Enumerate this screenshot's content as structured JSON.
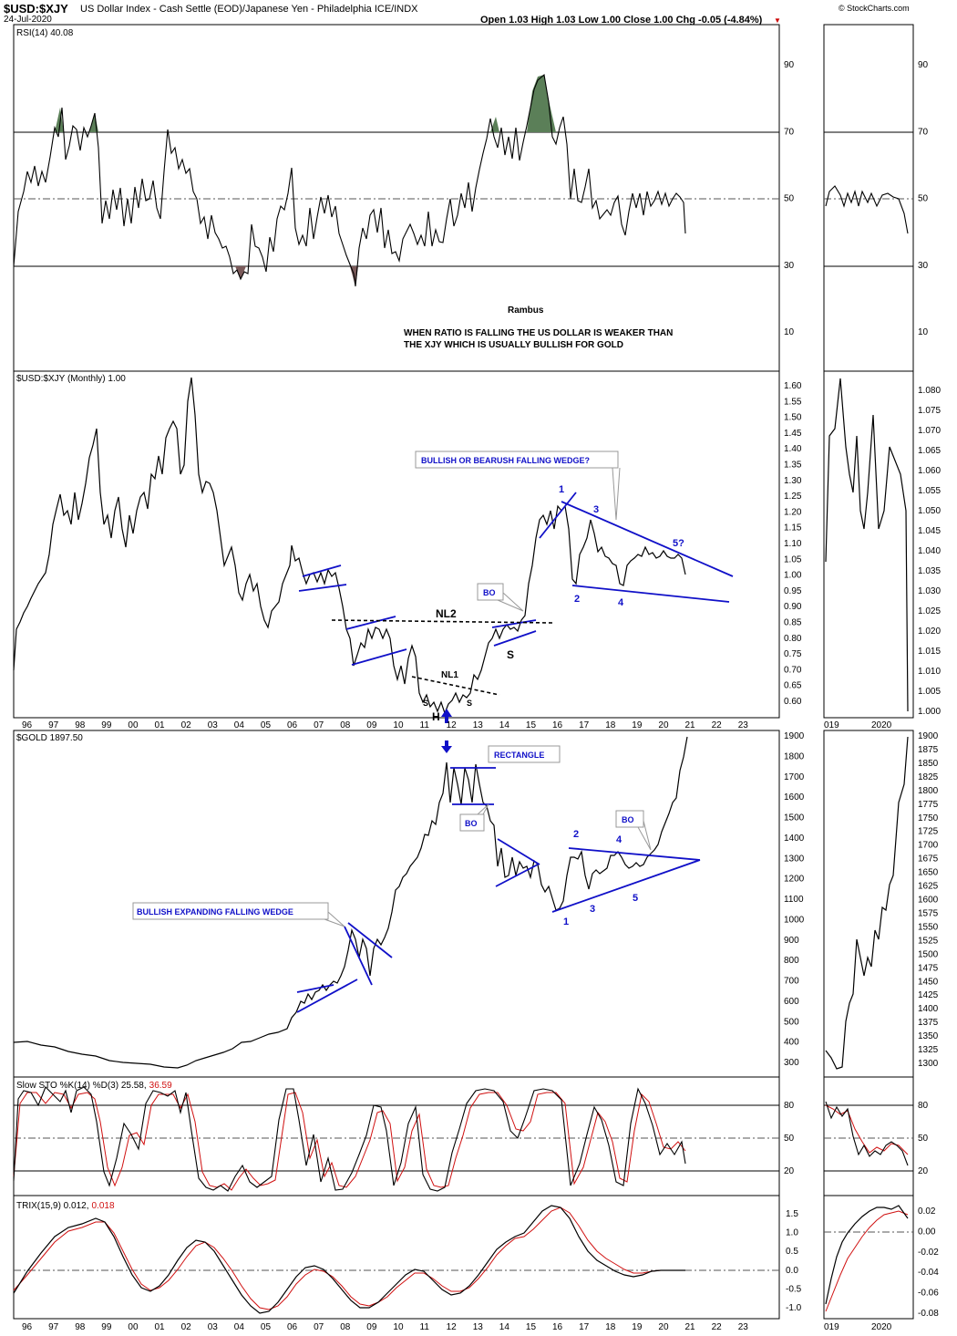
{
  "header": {
    "symbol": "$USD:$XJY",
    "description": "US Dollar Index - Cash Settle (EOD)/Japanese Yen - Philadelphia ICE/INDX",
    "date": "24-Jul-2020",
    "ohlc": "Open 1.03  High 1.03  Low 1.00  Close 1.00  Chg -0.05 (-4.84%)",
    "watermark": "© StockCharts.com"
  },
  "colors": {
    "pattern_lines": "#1010c8",
    "rsi_fill_over": "#5b7f58",
    "rsi_fill_under": "#7a5a5a",
    "signal_line": "#d01010",
    "price_line": "#000000"
  },
  "x_axis": {
    "years": [
      "96",
      "97",
      "98",
      "99",
      "00",
      "01",
      "02",
      "03",
      "04",
      "05",
      "06",
      "07",
      "08",
      "09",
      "10",
      "11",
      "12",
      "13",
      "14",
      "15",
      "16",
      "17",
      "18",
      "19",
      "20",
      "21",
      "22",
      "23"
    ],
    "inset_labels": [
      "019",
      "2020"
    ]
  },
  "panels": {
    "rsi": {
      "title": "RSI(14) 40.08",
      "ticks": [
        "90",
        "70",
        "50",
        "30",
        "10"
      ],
      "note_author": "Rambus",
      "note_lines": [
        "WHEN RATIO IS FALLING THE US DOLLAR IS WEAKER THAN",
        "THE XJY WHICH IS USUALLY BULLISH FOR GOLD"
      ]
    },
    "ratio": {
      "title": "$USD:$XJY (Monthly) 1.00",
      "ticks": [
        "1.60",
        "1.55",
        "1.50",
        "1.45",
        "1.40",
        "1.35",
        "1.30",
        "1.25",
        "1.20",
        "1.15",
        "1.10",
        "1.05",
        "1.00",
        "0.95",
        "0.90",
        "0.85",
        "0.80",
        "0.75",
        "0.70",
        "0.65",
        "0.60"
      ],
      "inset_ticks": [
        "1.080",
        "1.075",
        "1.070",
        "1.065",
        "1.060",
        "1.055",
        "1.050",
        "1.045",
        "1.040",
        "1.035",
        "1.030",
        "1.025",
        "1.020",
        "1.015",
        "1.010",
        "1.005",
        "1.000"
      ],
      "callout": "BULLISH OR BEARUSH  FALLING WEDGE?",
      "bo": "BO",
      "nl2": "NL2",
      "nl1": "NL1",
      "h": "H",
      "s": "S",
      "s_small": "S",
      "wedge_points": [
        "1",
        "2",
        "3",
        "4",
        "5?"
      ]
    },
    "gold": {
      "title": "$GOLD 1897.50",
      "ticks": [
        "1900",
        "1800",
        "1700",
        "1600",
        "1500",
        "1400",
        "1300",
        "1200",
        "1100",
        "1000",
        "900",
        "800",
        "700",
        "600",
        "500",
        "400",
        "300"
      ],
      "inset_ticks": [
        "1900",
        "1875",
        "1850",
        "1825",
        "1800",
        "1775",
        "1750",
        "1725",
        "1700",
        "1675",
        "1650",
        "1625",
        "1600",
        "1575",
        "1550",
        "1525",
        "1500",
        "1475",
        "1450",
        "1425",
        "1400",
        "1375",
        "1350",
        "1325",
        "1300"
      ],
      "callout_wedge": "BULLISH EXPANDING FALLING WEDGE",
      "callout_rect": "RECTANGLE",
      "bo": "BO",
      "bo2": "BO",
      "triangle_points": [
        "1",
        "2",
        "3",
        "4",
        "5"
      ]
    },
    "sto": {
      "title": "Slow STO %K(14) %D(3) 25.58,",
      "title_red": "36.59",
      "ticks": [
        "80",
        "50",
        "20"
      ]
    },
    "trix": {
      "title": "TRIX(15,9) 0.012,",
      "title_red": "0.018",
      "ticks": [
        "1.5",
        "1.0",
        "0.5",
        "0.0",
        "-0.5",
        "-1.0"
      ],
      "inset_ticks": [
        "0.02",
        "0.00",
        "-0.02",
        "-0.04",
        "-0.06",
        "-0.08"
      ]
    }
  },
  "chart_data": [
    {
      "type": "line",
      "title": "RSI(14) 40.08",
      "x": [
        "1995",
        "1996",
        "1997",
        "1998",
        "1999",
        "2000",
        "2001",
        "2002",
        "2003",
        "2004",
        "2005",
        "2006",
        "2007",
        "2008",
        "2009",
        "2010",
        "2011",
        "2012",
        "2013",
        "2014",
        "2015",
        "2016",
        "2017",
        "2018",
        "2019",
        "2020"
      ],
      "series": [
        {
          "values": [
            30,
            55,
            75,
            72,
            45,
            50,
            65,
            55,
            45,
            28,
            35,
            60,
            48,
            35,
            45,
            42,
            35,
            45,
            60,
            65,
            88,
            45,
            50,
            45,
            52,
            40
          ]
        }
      ],
      "reference_lines": [
        30,
        50,
        70
      ]
    },
    {
      "type": "line",
      "title": "$USD:$XJY (Monthly) 1.00",
      "x": [
        "1995",
        "1996",
        "1997",
        "1998",
        "1999",
        "2000",
        "2001",
        "2002",
        "2003",
        "2004",
        "2005",
        "2006",
        "2007",
        "2008",
        "2009",
        "2010",
        "2011",
        "2012",
        "2013",
        "2014",
        "2015",
        "2016",
        "2017",
        "2018",
        "2019",
        "2020"
      ],
      "series": [
        {
          "values": [
            0.73,
            0.9,
            1.15,
            1.35,
            1.2,
            1.05,
            1.45,
            1.3,
            1.05,
            0.97,
            0.88,
            1.03,
            1.0,
            0.8,
            0.82,
            0.72,
            0.62,
            0.65,
            0.7,
            0.85,
            1.2,
            1.0,
            1.1,
            0.98,
            1.06,
            1.0
          ]
        }
      ],
      "ylim": [
        0.55,
        1.65
      ]
    },
    {
      "type": "line",
      "title": "$GOLD 1897.50",
      "x": [
        "1995",
        "1996",
        "1997",
        "1998",
        "1999",
        "2000",
        "2001",
        "2002",
        "2003",
        "2004",
        "2005",
        "2006",
        "2007",
        "2008",
        "2009",
        "2010",
        "2011",
        "2012",
        "2013",
        "2014",
        "2015",
        "2016",
        "2017",
        "2018",
        "2019",
        "2020"
      ],
      "series": [
        {
          "values": [
            385,
            380,
            350,
            290,
            290,
            280,
            270,
            330,
            390,
            420,
            500,
            620,
            800,
            850,
            1050,
            1350,
            1800,
            1700,
            1250,
            1200,
            1060,
            1150,
            1300,
            1280,
            1400,
            1897
          ]
        }
      ],
      "ylim": [
        250,
        1900
      ]
    },
    {
      "type": "line",
      "title": "Slow STO %K(14) %D(3) 25.58, 36.59",
      "series": [
        {
          "values": [
            80,
            85,
            20,
            80,
            15,
            85,
            15,
            40,
            90,
            20,
            80,
            10,
            85,
            15,
            80,
            10,
            90,
            85,
            15,
            85,
            10,
            80,
            15,
            90,
            40,
            25
          ]
        },
        {
          "values": [
            75,
            80,
            25,
            75,
            20,
            80,
            20,
            35,
            85,
            25,
            75,
            15,
            80,
            20,
            75,
            15,
            85,
            80,
            20,
            80,
            15,
            75,
            20,
            85,
            45,
            36
          ]
        }
      ],
      "reference_lines": [
        20,
        50,
        80
      ]
    },
    {
      "type": "line",
      "title": "TRIX(15,9) 0.012, 0.018",
      "series": [
        {
          "values": [
            0.2,
            0.9,
            1.1,
            0.4,
            -0.6,
            -0.3,
            0.4,
            1.0,
            0.5,
            -0.2,
            -0.8,
            -0.4,
            0.3,
            0.0,
            -0.6,
            -0.2,
            0.1,
            0.6,
            1.3,
            1.6,
            0.6,
            0.0,
            -0.1,
            0.0,
            0.0,
            0.012
          ]
        },
        {
          "values": [
            0.1,
            0.8,
            1.1,
            0.5,
            -0.5,
            -0.4,
            0.3,
            0.9,
            0.6,
            -0.1,
            -0.7,
            -0.5,
            0.2,
            0.1,
            -0.5,
            -0.3,
            0.0,
            0.5,
            1.2,
            1.6,
            0.8,
            0.1,
            -0.1,
            0.0,
            0.0,
            0.018
          ]
        }
      ],
      "reference_lines": [
        0.0
      ]
    }
  ]
}
